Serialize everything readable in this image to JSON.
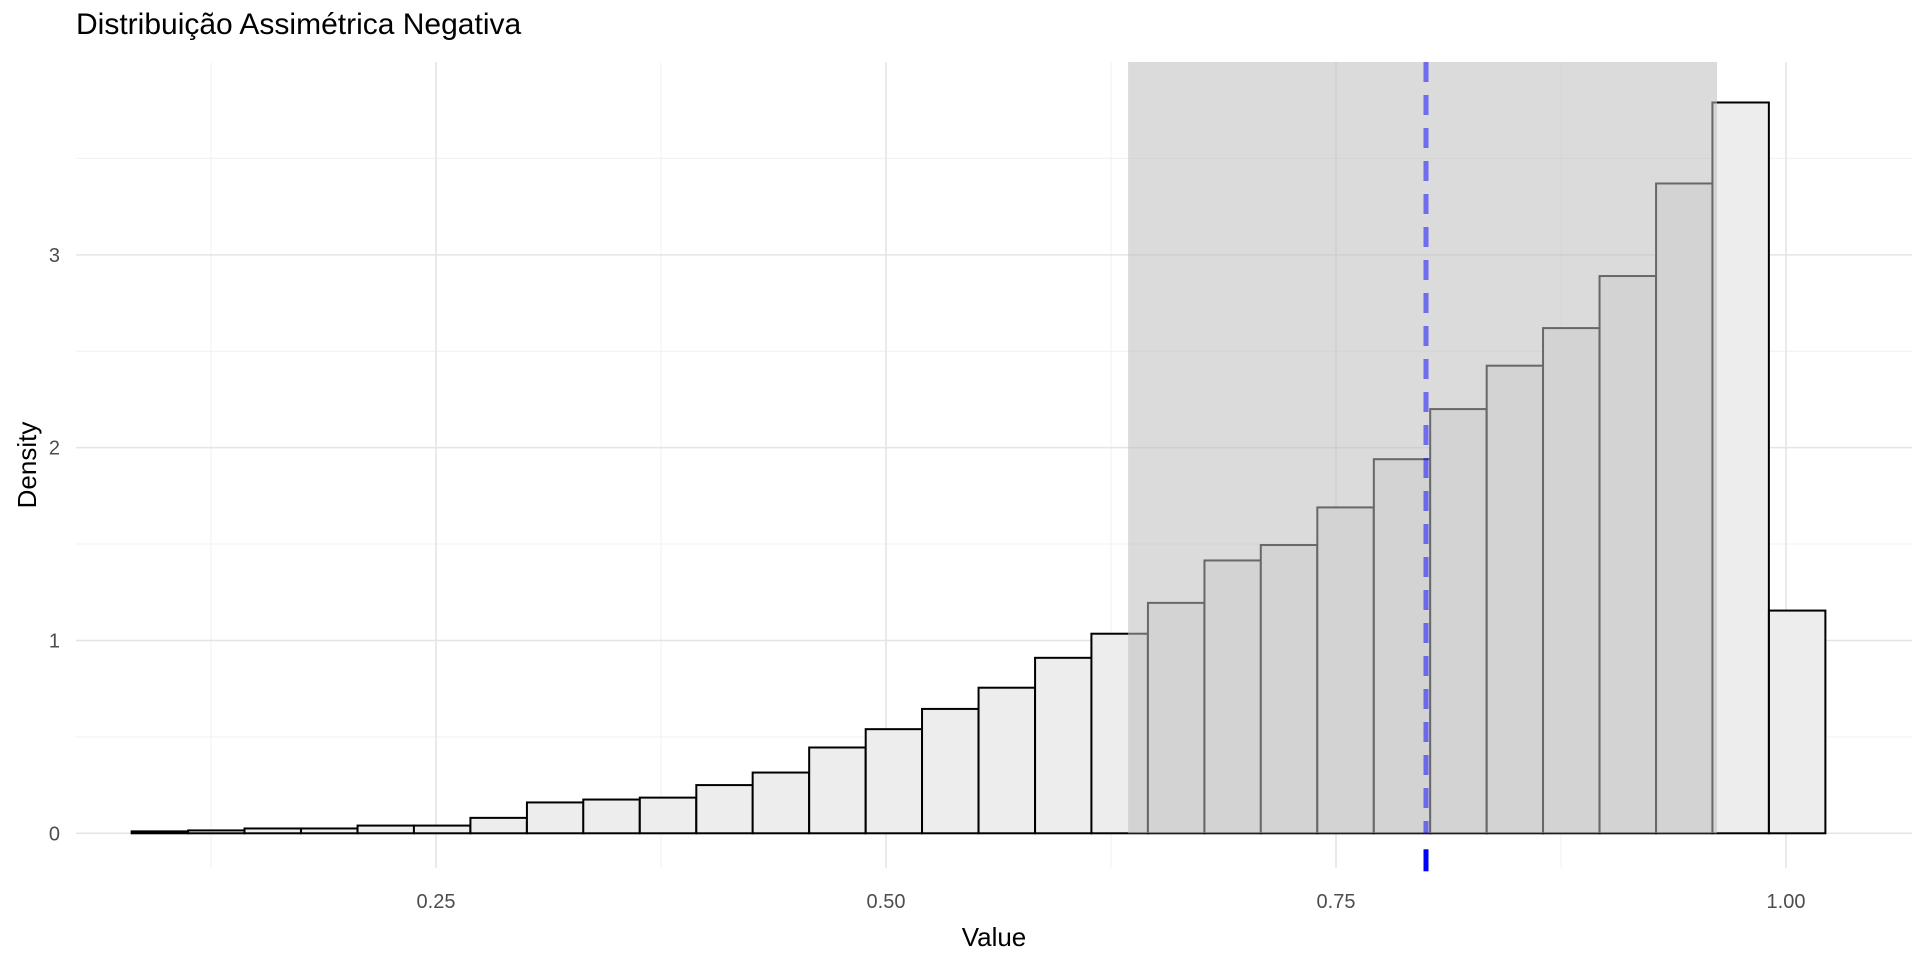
{
  "chart_data": {
    "type": "bar",
    "title": "Distribuição Assimétrica Negativa",
    "xlabel": "Value",
    "ylabel": "Density",
    "xlim": [
      0.05,
      1.07
    ],
    "ylim": [
      -0.18,
      4.0
    ],
    "x_ticks": [
      0.25,
      0.5,
      0.75,
      1.0
    ],
    "x_tick_labels": [
      "0.25",
      "0.50",
      "0.75",
      "1.00"
    ],
    "y_ticks": [
      0,
      1,
      2,
      3
    ],
    "y_tick_labels": [
      "0",
      "1",
      "2",
      "3"
    ],
    "grid": true,
    "bin_width": 0.03136,
    "bin_centers": [
      0.0966,
      0.128,
      0.1593,
      0.1907,
      0.2221,
      0.2534,
      0.2848,
      0.3162,
      0.3475,
      0.3789,
      0.4103,
      0.4416,
      0.473,
      0.5044,
      0.5357,
      0.5671,
      0.5985,
      0.6298,
      0.6612,
      0.6926,
      0.7239,
      0.7553,
      0.7867,
      0.818,
      0.8494,
      0.8807,
      0.9121,
      0.9435,
      0.9748,
      1.0062
    ],
    "values": [
      0.01,
      0.015,
      0.025,
      0.025,
      0.04,
      0.04,
      0.08,
      0.16,
      0.175,
      0.185,
      0.25,
      0.315,
      0.445,
      0.54,
      0.645,
      0.755,
      0.91,
      1.035,
      1.195,
      1.415,
      1.495,
      1.69,
      1.94,
      2.2,
      2.425,
      2.62,
      2.89,
      3.37,
      3.79,
      1.155
    ],
    "bar_fill": "#ededed",
    "bar_outline": "#000000",
    "shaded_interval": {
      "from": 0.6345,
      "to": 0.9617,
      "color": "#bdbdbd"
    },
    "vline": {
      "x": 0.8,
      "color": "#0000ff",
      "style": "dashed"
    },
    "rug": {
      "x": 0.8,
      "color": "#0000ff"
    }
  }
}
